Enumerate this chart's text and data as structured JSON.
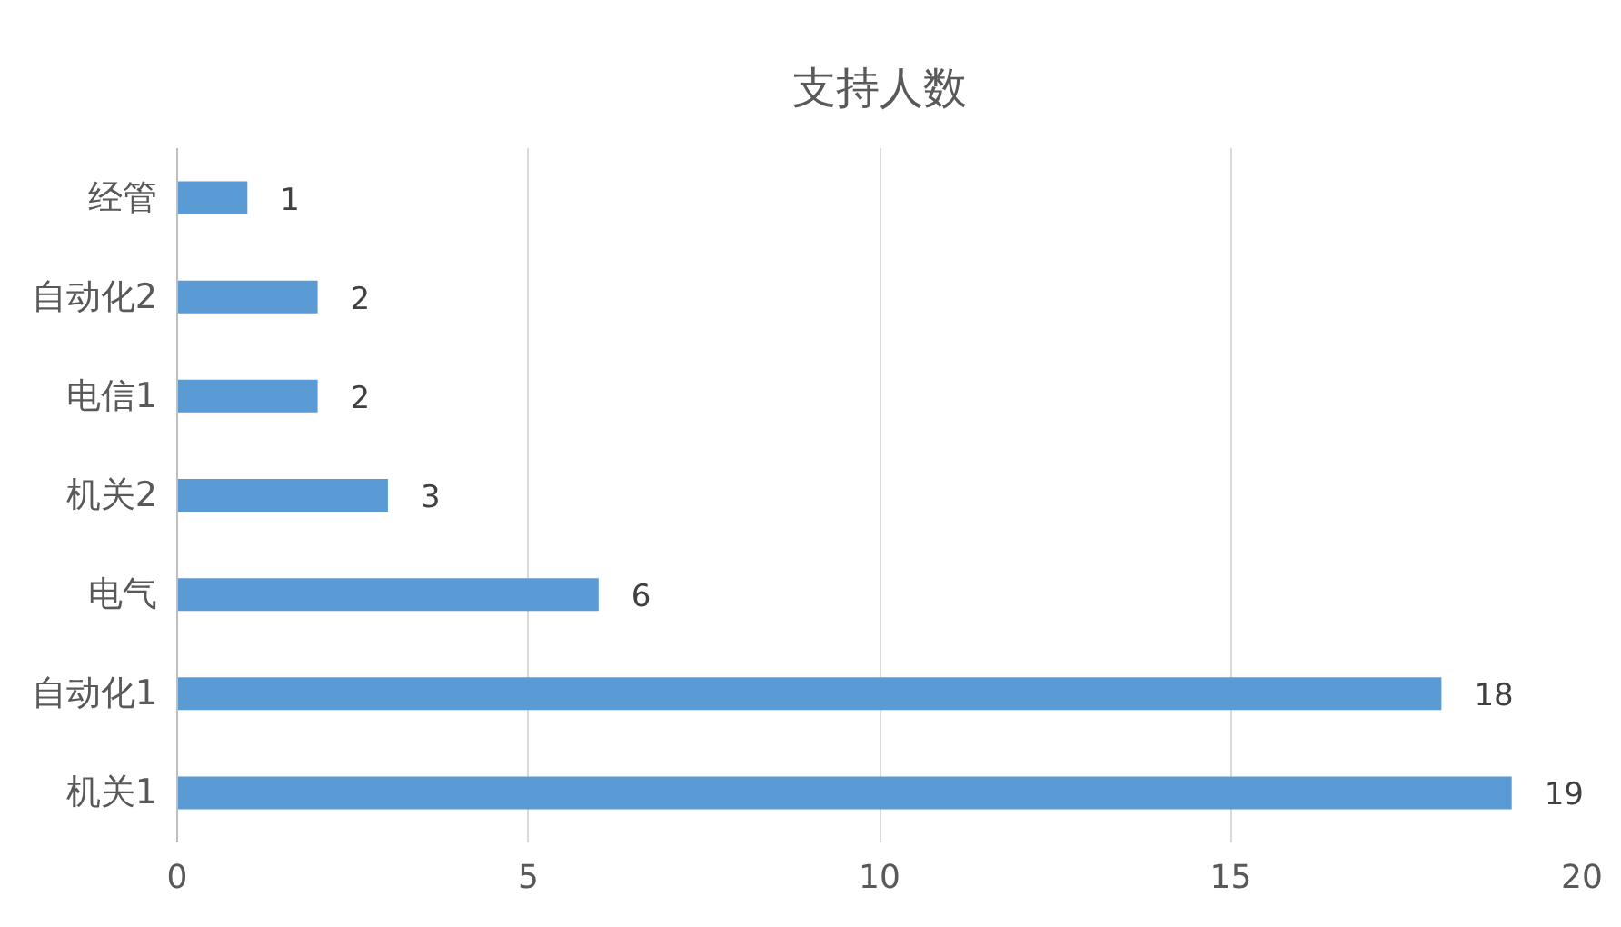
{
  "chart_data": {
    "type": "bar",
    "title": "支持人数",
    "orientation": "horizontal",
    "categories": [
      "经管",
      "自动化2",
      "电信1",
      "机关2",
      "电气",
      "自动化1",
      "机关1"
    ],
    "values": [
      1,
      2,
      2,
      3,
      6,
      18,
      19
    ],
    "color": "#5b9bd5",
    "xlim": [
      0,
      20
    ],
    "xticks": [
      0,
      5,
      10,
      15,
      20
    ],
    "grid": "x",
    "data_labels": true
  }
}
